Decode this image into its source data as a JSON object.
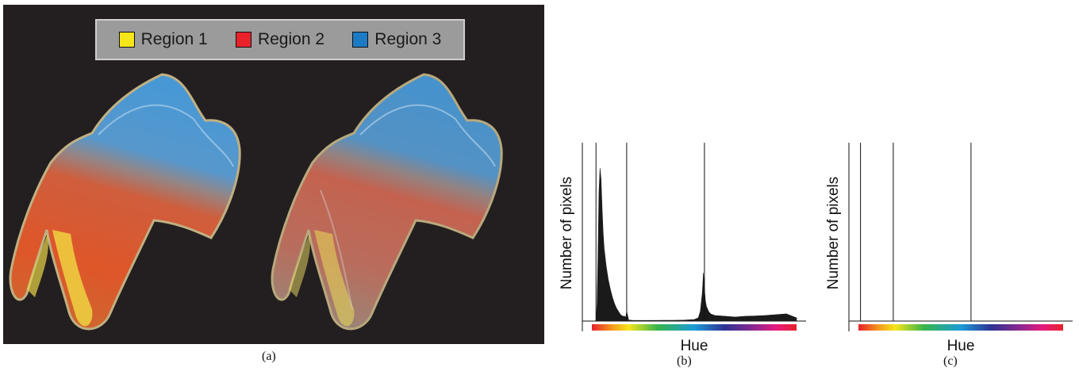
{
  "legend": {
    "items": [
      {
        "label": "Region 1",
        "color": "#f5e61a"
      },
      {
        "label": "Region 2",
        "color": "#e8212b"
      },
      {
        "label": "Region 3",
        "color": "#1b7bc4"
      }
    ]
  },
  "captions": {
    "a": "(a)",
    "b": "(b)",
    "c": "(c)"
  },
  "chart_data": [
    {
      "type": "area",
      "xlabel": "Hue",
      "ylabel": "Number of pixels",
      "hue_bar": true,
      "divider_lines_x": [
        0.02,
        0.17,
        0.55
      ],
      "x": [
        0.0,
        0.02,
        0.025,
        0.03,
        0.035,
        0.04,
        0.045,
        0.05,
        0.055,
        0.06,
        0.07,
        0.08,
        0.09,
        0.1,
        0.11,
        0.12,
        0.13,
        0.14,
        0.15,
        0.16,
        0.165,
        0.17,
        0.18,
        0.2,
        0.25,
        0.3,
        0.35,
        0.4,
        0.45,
        0.5,
        0.52,
        0.53,
        0.54,
        0.545,
        0.55,
        0.555,
        0.56,
        0.57,
        0.58,
        0.6,
        0.65,
        0.7,
        0.75,
        0.8,
        0.85,
        0.9,
        0.95,
        1.0
      ],
      "y": [
        0,
        0,
        10,
        40,
        80,
        95,
        88,
        70,
        55,
        45,
        34,
        26,
        20,
        15,
        11,
        8,
        6,
        4,
        3,
        3,
        2,
        6,
        0.6,
        0.5,
        0.4,
        0.4,
        0.5,
        0.5,
        0.6,
        1,
        2,
        6,
        18,
        30,
        20,
        12,
        9,
        6,
        4.5,
        3.5,
        3,
        2.5,
        3,
        3.2,
        3.5,
        4,
        4.5,
        2
      ],
      "ylim": [
        0,
        100
      ]
    },
    {
      "type": "area",
      "xlabel": "Hue",
      "ylabel": "Number of pixels",
      "hue_bar": true,
      "divider_lines_x": [
        0.01,
        0.17,
        0.55
      ],
      "x": [
        0,
        1
      ],
      "y": [
        0,
        0
      ],
      "ylim": [
        0,
        100
      ]
    }
  ]
}
